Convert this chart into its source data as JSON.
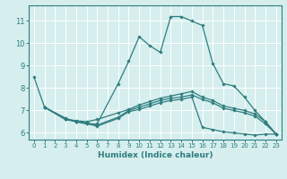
{
  "xlabel": "Humidex (Indice chaleur)",
  "background_color": "#d6eeee",
  "grid_color": "#ffffff",
  "line_color": "#2e7d7d",
  "xlim": [
    -0.5,
    23.5
  ],
  "ylim": [
    5.7,
    11.7
  ],
  "xticks": [
    0,
    1,
    2,
    3,
    4,
    5,
    6,
    7,
    8,
    9,
    10,
    11,
    12,
    13,
    14,
    15,
    16,
    17,
    18,
    19,
    20,
    21,
    22,
    23
  ],
  "yticks": [
    6,
    7,
    8,
    9,
    10,
    11
  ],
  "lines": [
    {
      "x": [
        0,
        1,
        3,
        4,
        5,
        6,
        8,
        9,
        10,
        11,
        12,
        13,
        14,
        15,
        16,
        17,
        18,
        19,
        20,
        21,
        22,
        23
      ],
      "y": [
        8.5,
        7.15,
        6.6,
        6.5,
        6.4,
        6.4,
        8.2,
        9.2,
        10.3,
        9.9,
        9.6,
        11.2,
        11.2,
        11.0,
        10.8,
        9.1,
        8.2,
        8.1,
        7.6,
        7.0,
        6.5,
        5.95
      ]
    },
    {
      "x": [
        1,
        3,
        4,
        5,
        6,
        8,
        9,
        10,
        11,
        12,
        13,
        14,
        15,
        16,
        17,
        18,
        19,
        20,
        21,
        22,
        23
      ],
      "y": [
        7.15,
        6.6,
        6.55,
        6.5,
        6.6,
        6.9,
        7.05,
        7.25,
        7.4,
        7.55,
        7.65,
        7.75,
        7.85,
        7.6,
        7.45,
        7.2,
        7.1,
        7.0,
        6.85,
        6.5,
        5.95
      ]
    },
    {
      "x": [
        1,
        3,
        4,
        5,
        6,
        8,
        9,
        10,
        11,
        12,
        13,
        14,
        15,
        16,
        17,
        18,
        19,
        20,
        21,
        22,
        23
      ],
      "y": [
        7.15,
        6.65,
        6.5,
        6.45,
        6.35,
        6.7,
        7.0,
        7.15,
        7.3,
        7.45,
        7.55,
        7.6,
        7.7,
        7.5,
        7.35,
        7.1,
        7.0,
        6.9,
        6.75,
        6.4,
        5.95
      ]
    },
    {
      "x": [
        1,
        3,
        4,
        5,
        6,
        8,
        9,
        10,
        11,
        12,
        13,
        14,
        15,
        16,
        17,
        18,
        19,
        20,
        21,
        22,
        23
      ],
      "y": [
        7.15,
        6.65,
        6.5,
        6.42,
        6.3,
        6.65,
        6.95,
        7.05,
        7.2,
        7.35,
        7.45,
        7.5,
        7.6,
        6.25,
        6.15,
        6.05,
        6.0,
        5.95,
        5.9,
        5.95,
        5.95
      ]
    }
  ]
}
